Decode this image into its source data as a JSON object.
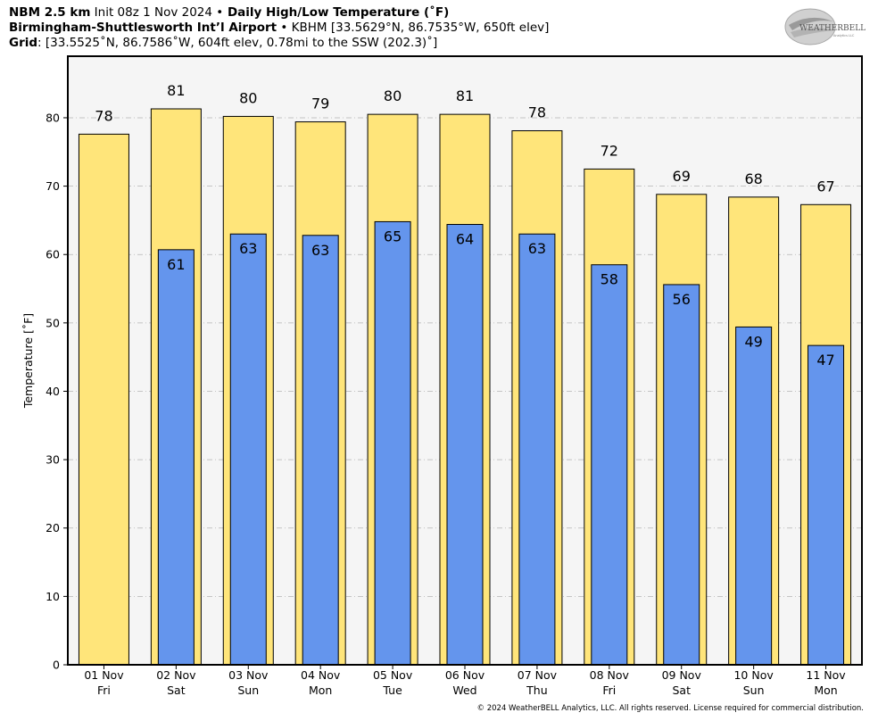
{
  "header": {
    "line1_model": "NBM 2.5 km",
    "line1_init": " Init 08z 1 Nov 2024 ",
    "line1_bullet": "•",
    "line1_product": " Daily High/Low Temperature (˚F)",
    "line2_station": "Birmingham-Shuttlesworth Int’l Airport",
    "line2_bullet": " • ",
    "line2_info": "KBHM [33.5629°N, 86.7535°W, 650ft elev]",
    "line3_label": "Grid",
    "line3_info": ": [33.5525˚N, 86.7586˚W, 604ft elev, 0.78mi to the SSW (202.3)˚]"
  },
  "logo": {
    "text_main": "WEATHERBELL",
    "text_sub": "Analytics LLC"
  },
  "copyright": "© 2024 WeatherBELL Analytics, LLC. All rights reserved. License required for commercial distribution.",
  "colors": {
    "high": "#FFE57A",
    "low": "#6495ED",
    "plot_bg": "#F5F5F5"
  },
  "chart_data": {
    "type": "bar",
    "ylabel": "Temperature [˚F]",
    "ylim": [
      0,
      89
    ],
    "yticks": [
      0,
      10,
      20,
      30,
      40,
      50,
      60,
      70,
      80
    ],
    "grid": true,
    "categories": [
      [
        "01 Nov",
        "Fri"
      ],
      [
        "02 Nov",
        "Sat"
      ],
      [
        "03 Nov",
        "Sun"
      ],
      [
        "04 Nov",
        "Mon"
      ],
      [
        "05 Nov",
        "Tue"
      ],
      [
        "06 Nov",
        "Wed"
      ],
      [
        "07 Nov",
        "Thu"
      ],
      [
        "08 Nov",
        "Fri"
      ],
      [
        "09 Nov",
        "Sat"
      ],
      [
        "10 Nov",
        "Sun"
      ],
      [
        "11 Nov",
        "Mon"
      ]
    ],
    "series": [
      {
        "key": "high",
        "values": [
          77.6,
          81.3,
          80.2,
          79.4,
          80.5,
          80.5,
          78.1,
          72.5,
          68.8,
          68.4,
          67.3
        ],
        "labels": [
          "78",
          "81",
          "80",
          "79",
          "80",
          "81",
          "78",
          "72",
          "69",
          "68",
          "67"
        ]
      },
      {
        "key": "low",
        "values": [
          null,
          60.7,
          63.0,
          62.8,
          64.8,
          64.4,
          63.0,
          58.5,
          55.6,
          49.4,
          46.7
        ],
        "labels": [
          null,
          "61",
          "63",
          "63",
          "65",
          "64",
          "63",
          "58",
          "56",
          "49",
          "47"
        ]
      }
    ]
  }
}
